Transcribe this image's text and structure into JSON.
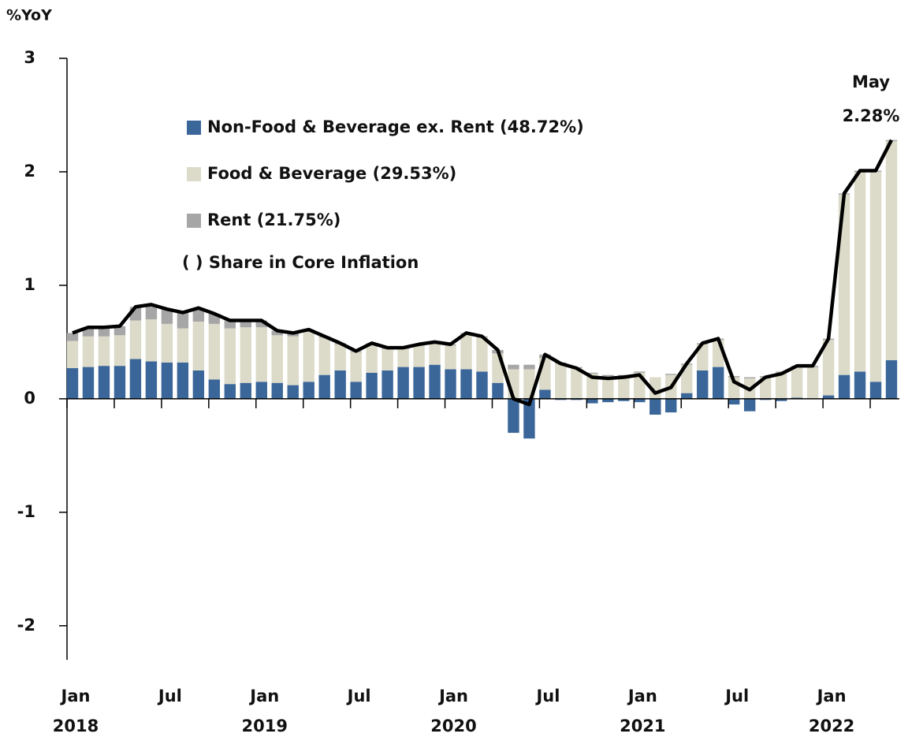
{
  "chart_data": {
    "type": "bar",
    "y_axis_label": "%YoY",
    "categories": [
      "Jan 2018",
      null,
      null,
      null,
      null,
      null,
      "Jul",
      null,
      null,
      null,
      null,
      null,
      "Jan 2019",
      null,
      null,
      null,
      null,
      null,
      "Jul",
      null,
      null,
      null,
      null,
      null,
      "Jan 2020",
      null,
      null,
      null,
      null,
      null,
      "Jul",
      null,
      null,
      null,
      null,
      null,
      "Jan 2021",
      null,
      null,
      null,
      null,
      null,
      "Jul",
      null,
      null,
      null,
      null,
      null,
      "Jan 2022",
      null,
      null,
      null,
      null
    ],
    "series": [
      {
        "name": "Non-Food & Beverage ex. Rent (48.72%)",
        "color": "#3a6699",
        "values": [
          0.27,
          0.28,
          0.29,
          0.29,
          0.35,
          0.33,
          0.32,
          0.32,
          0.25,
          0.17,
          0.13,
          0.14,
          0.15,
          0.14,
          0.12,
          0.15,
          0.21,
          0.25,
          0.15,
          0.23,
          0.25,
          0.28,
          0.28,
          0.3,
          0.26,
          0.26,
          0.24,
          0.14,
          -0.3,
          -0.35,
          0.08,
          -0.01,
          -0.01,
          -0.04,
          -0.03,
          -0.02,
          -0.03,
          -0.14,
          -0.12,
          0.05,
          0.25,
          0.28,
          -0.05,
          -0.11,
          -0.01,
          -0.02,
          0.01,
          0.0,
          0.03,
          0.21,
          0.24,
          0.15,
          0.34
        ]
      },
      {
        "name": "Food & Beverage (29.53%)",
        "color": "#dcdac8",
        "values": [
          0.24,
          0.27,
          0.26,
          0.27,
          0.34,
          0.37,
          0.34,
          0.3,
          0.43,
          0.49,
          0.49,
          0.49,
          0.48,
          0.42,
          0.43,
          0.44,
          0.33,
          0.23,
          0.26,
          0.25,
          0.19,
          0.16,
          0.19,
          0.19,
          0.21,
          0.31,
          0.3,
          0.26,
          0.26,
          0.26,
          0.28,
          0.31,
          0.27,
          0.22,
          0.2,
          0.2,
          0.23,
          0.19,
          0.21,
          0.25,
          0.23,
          0.24,
          0.19,
          0.18,
          0.19,
          0.23,
          0.27,
          0.28,
          0.49,
          1.59,
          1.76,
          1.85,
          1.93
        ]
      },
      {
        "name": "Rent (21.75%)",
        "color": "#a6a6a6",
        "values": [
          0.07,
          0.08,
          0.08,
          0.08,
          0.12,
          0.13,
          0.13,
          0.14,
          0.12,
          0.09,
          0.07,
          0.06,
          0.06,
          0.04,
          0.03,
          0.02,
          0.01,
          0.01,
          0.01,
          0.01,
          0.01,
          0.01,
          0.01,
          0.01,
          0.01,
          0.01,
          0.01,
          0.03,
          0.04,
          0.04,
          0.03,
          0.01,
          0.01,
          0.01,
          0.01,
          0.01,
          0.01,
          0.0,
          0.01,
          0.01,
          0.01,
          0.01,
          0.01,
          0.01,
          0.01,
          0.01,
          0.01,
          0.01,
          0.01,
          0.01,
          0.01,
          0.01,
          0.01
        ]
      },
      {
        "name": "Core Inflation",
        "type": "line",
        "color": "#000000",
        "values": [
          0.58,
          0.63,
          0.63,
          0.64,
          0.81,
          0.83,
          0.79,
          0.76,
          0.8,
          0.75,
          0.69,
          0.69,
          0.69,
          0.6,
          0.58,
          0.61,
          0.55,
          0.49,
          0.42,
          0.49,
          0.45,
          0.45,
          0.48,
          0.5,
          0.48,
          0.58,
          0.55,
          0.43,
          0.0,
          -0.05,
          0.39,
          0.31,
          0.27,
          0.19,
          0.18,
          0.19,
          0.21,
          0.05,
          0.1,
          0.31,
          0.49,
          0.53,
          0.15,
          0.08,
          0.19,
          0.22,
          0.29,
          0.29,
          0.53,
          1.81,
          2.01,
          2.01,
          2.28
        ]
      }
    ],
    "legend_note": "( ) Share in Core Inflation",
    "annotation": {
      "line1": "May",
      "line2": "2.28%"
    },
    "ylim": [
      -2.3,
      3.0
    ],
    "yticks": [
      3,
      2,
      1,
      0,
      -1,
      -2
    ]
  }
}
